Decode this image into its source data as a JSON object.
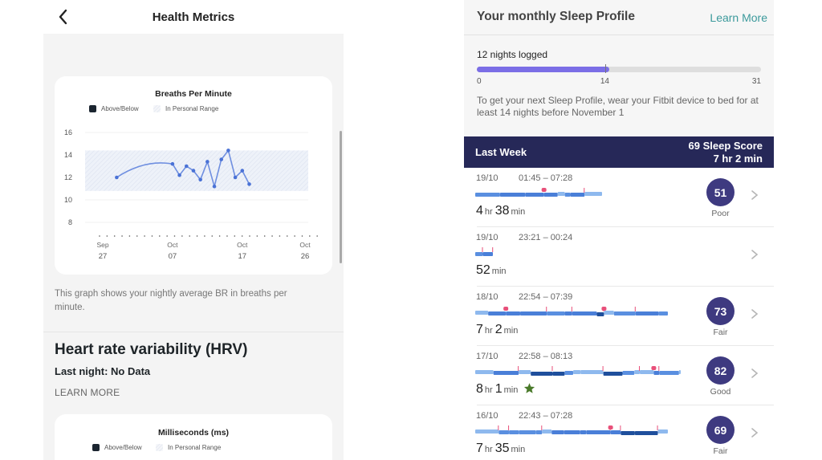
{
  "left": {
    "header": {
      "title": "Health Metrics",
      "back_icon": "chevron-left-icon"
    },
    "br_card": {
      "title": "Breaths Per Minute",
      "legend": [
        {
          "label": "Above/Below"
        },
        {
          "label": "In Personal Range"
        }
      ]
    },
    "description": "This graph shows your nightly average BR in breaths per minute.",
    "hrv": {
      "title": "Heart rate variability (HRV)",
      "last_night": "Last night: No Data",
      "learn_more": "LEARN MORE"
    },
    "ms_card": {
      "title": "Milliseconds (ms)",
      "legend": [
        {
          "label": "Above/Below"
        },
        {
          "label": "In Personal Range"
        }
      ]
    }
  },
  "chart_data": {
    "type": "line",
    "title": "Breaths Per Minute",
    "xlabel": "",
    "ylabel": "",
    "ylim": [
      7,
      16
    ],
    "yticks": [
      8,
      10,
      12,
      14,
      16
    ],
    "x_tick_labels": [
      {
        "month": "Sep",
        "day": "27"
      },
      {
        "month": "Oct",
        "day": "07"
      },
      {
        "month": "Oct",
        "day": "17"
      },
      {
        "month": "Oct",
        "day": "26"
      }
    ],
    "personal_range": [
      10.8,
      14.4
    ],
    "legend": [
      "Above/Below",
      "In Personal Range"
    ],
    "series": [
      {
        "name": "Nightly average BR",
        "x": [
          "Sep 29",
          "Oct 07",
          "Oct 08",
          "Oct 09",
          "Oct 10",
          "Oct 11",
          "Oct 12",
          "Oct 13",
          "Oct 14",
          "Oct 15",
          "Oct 16",
          "Oct 17",
          "Oct 18"
        ],
        "values": [
          12.0,
          13.2,
          12.2,
          13.0,
          12.6,
          11.8,
          13.4,
          11.2,
          13.6,
          14.4,
          12.0,
          12.6,
          11.4
        ]
      }
    ],
    "grid": true
  },
  "right": {
    "profile": {
      "title": "Your monthly Sleep Profile",
      "learn_more": "Learn More",
      "nights_logged": "12 nights logged",
      "progress": {
        "value": 12,
        "min": 0,
        "target": 14,
        "max": 31,
        "min_label": "0",
        "target_label": "14",
        "max_label": "31"
      },
      "message": "To get your next Sleep Profile, wear your Fitbit device to bed for at least 14 nights before November 1",
      "accent": "#7b6ee6"
    },
    "week": {
      "label": "Last Week",
      "score": "69 Sleep Score",
      "duration": "7 hr 2 min",
      "bg": "#262858"
    },
    "sessions": [
      {
        "date": "19/10",
        "time": "01:45 – 07:28",
        "hr": "4",
        "min": "38",
        "score": "51",
        "rating": "Poor",
        "star": false
      },
      {
        "date": "19/10",
        "time": "23:21 – 00:24",
        "hr": "",
        "min": "52",
        "score": "",
        "rating": "",
        "star": false
      },
      {
        "date": "18/10",
        "time": "22:54 – 07:39",
        "hr": "7",
        "min": "2",
        "score": "73",
        "rating": "Fair",
        "star": false
      },
      {
        "date": "17/10",
        "time": "22:58 – 08:13",
        "hr": "8",
        "min": "1",
        "score": "82",
        "rating": "Good",
        "star": true
      },
      {
        "date": "16/10",
        "time": "22:43 – 07:28",
        "hr": "7",
        "min": "35",
        "score": "69",
        "rating": "Fair",
        "star": false
      }
    ],
    "units": {
      "hr": "hr",
      "min": "min"
    }
  }
}
